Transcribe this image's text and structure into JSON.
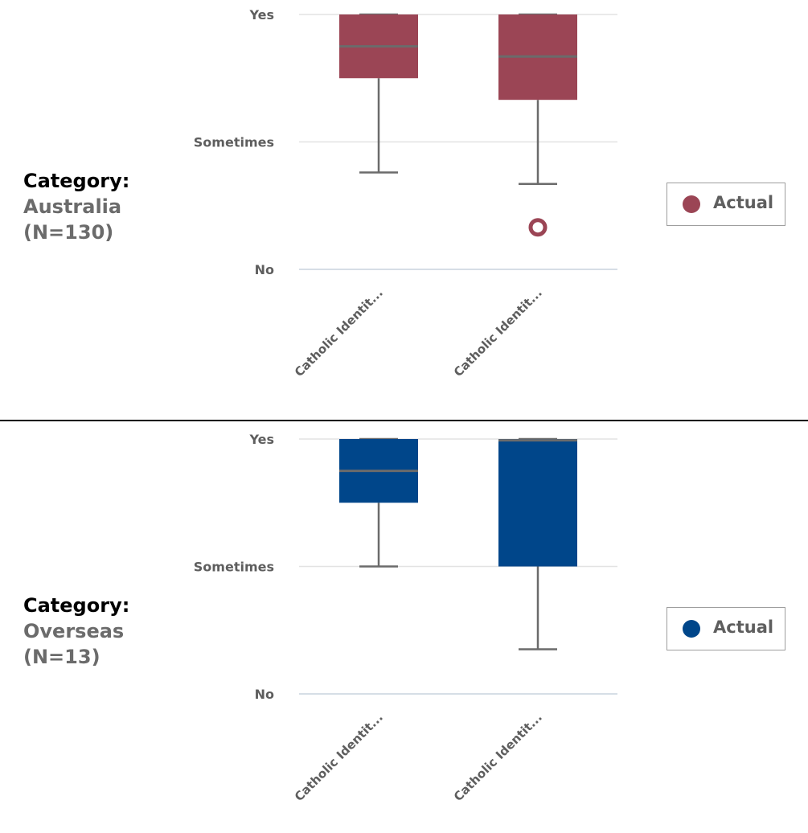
{
  "chart_data": [
    {
      "type": "boxplot",
      "title": "Category: Australia (N=130)",
      "title_lines": [
        "Category:",
        "Australia",
        "(N=130)"
      ],
      "y_scale": {
        "min": 0,
        "max": 2
      },
      "y_ticks": [
        {
          "value": 2,
          "label": "Yes"
        },
        {
          "value": 1,
          "label": "Sometimes"
        },
        {
          "value": 0,
          "label": "No"
        }
      ],
      "categories": [
        "Catholic Identit...",
        "Catholic Identit..."
      ],
      "color": "#9b4555",
      "legend": {
        "label": "Actual",
        "position": "right"
      },
      "boxes": [
        {
          "min": 0.76,
          "q1": 1.5,
          "median": 1.75,
          "q3": 2.0,
          "max": 2.0,
          "outliers": []
        },
        {
          "min": 0.67,
          "q1": 1.33,
          "median": 1.67,
          "q3": 2.0,
          "max": 2.0,
          "outliers": [
            0.33
          ]
        }
      ]
    },
    {
      "type": "boxplot",
      "title": "Category: Overseas (N=13)",
      "title_lines": [
        "Category:",
        "Overseas",
        "(N=13)"
      ],
      "y_scale": {
        "min": 0,
        "max": 2
      },
      "y_ticks": [
        {
          "value": 2,
          "label": "Yes"
        },
        {
          "value": 1,
          "label": "Sometimes"
        },
        {
          "value": 0,
          "label": "No"
        }
      ],
      "categories": [
        "Catholic Identit...",
        "Catholic Identit..."
      ],
      "color": "#00468a",
      "legend": {
        "label": "Actual",
        "position": "right"
      },
      "boxes": [
        {
          "min": 1.0,
          "q1": 1.5,
          "median": 1.75,
          "q3": 2.0,
          "max": 2.0,
          "outliers": []
        },
        {
          "min": 0.35,
          "q1": 1.0,
          "median": 1.99,
          "q3": 2.0,
          "max": 2.0,
          "outliers": []
        }
      ]
    }
  ]
}
